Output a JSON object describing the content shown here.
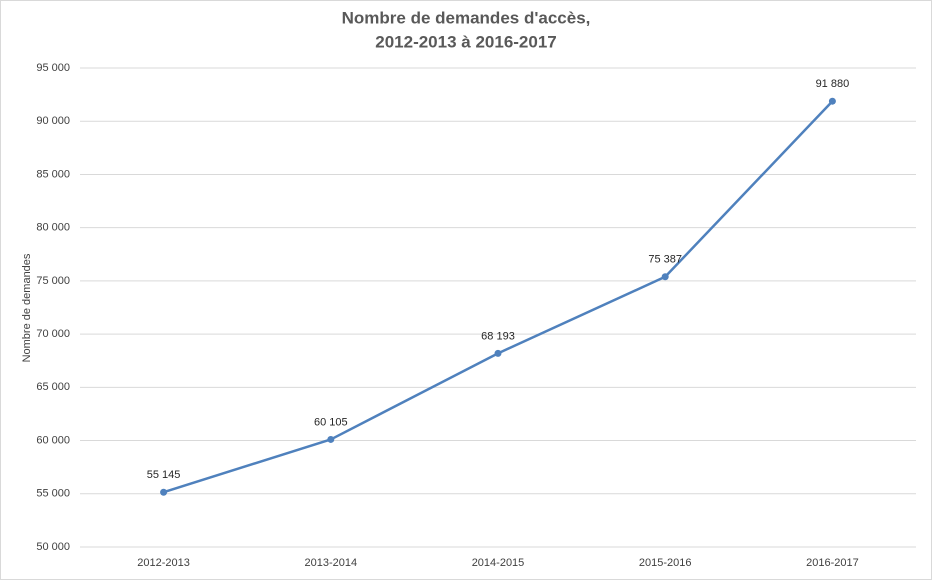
{
  "chart_data": {
    "type": "line",
    "title": [
      "Nombre de demandes d'accès,",
      "2012-2013 à 2016-2017"
    ],
    "ylabel": "Nombre de demandes",
    "categories": [
      "2012-2013",
      "2013-2014",
      "2014-2015",
      "2015-2016",
      "2016-2017"
    ],
    "values": [
      55145,
      60105,
      68193,
      75387,
      91880
    ],
    "value_labels": [
      "55 145",
      "60 105",
      "68 193",
      "75 387",
      "91 880"
    ],
    "color": "#4f81bd",
    "ylim": [
      50000,
      95000
    ],
    "yticks": [
      {
        "value": 50000,
        "label": "50 000"
      },
      {
        "value": 55000,
        "label": "55 000"
      },
      {
        "value": 60000,
        "label": "60 000"
      },
      {
        "value": 65000,
        "label": "65 000"
      },
      {
        "value": 70000,
        "label": "70 000"
      },
      {
        "value": 75000,
        "label": "75 000"
      },
      {
        "value": 80000,
        "label": "80 000"
      },
      {
        "value": 85000,
        "label": "85 000"
      },
      {
        "value": 90000,
        "label": "90 000"
      },
      {
        "value": 95000,
        "label": "95 000"
      }
    ],
    "grid": true
  }
}
